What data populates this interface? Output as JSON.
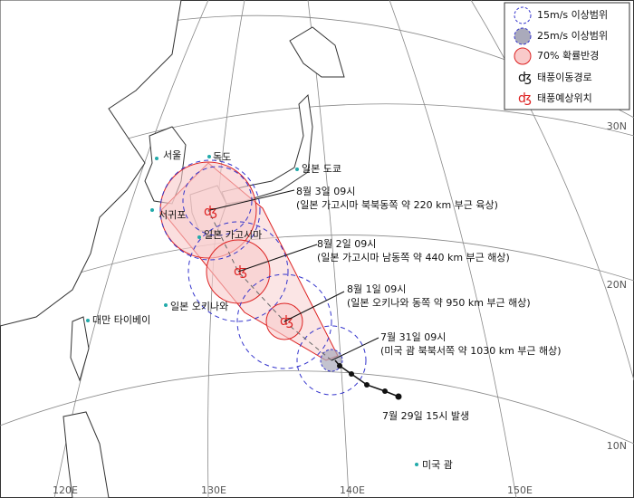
{
  "legend": {
    "items": [
      "15m/s 이상범위",
      "25m/s 이상범위",
      "70% 확률반경",
      "태풍이동경로",
      "태풍예상위치"
    ]
  },
  "grid": {
    "lat_labels": [
      "30N",
      "20N",
      "10N"
    ],
    "lon_labels": [
      "120E",
      "130E",
      "140E",
      "150E"
    ]
  },
  "places": [
    "서울",
    "독도",
    "일본 도쿄",
    "서귀포",
    "일본 가고시마",
    "일본 오키나와",
    "대만 타이베이",
    "미국 괌"
  ],
  "forecasts": [
    {
      "time": "8월 3일 09시",
      "description": "(일본 가고시마 북북동쪽 약 220 km 부근 육상)"
    },
    {
      "time": "8월 2일 09시",
      "description": "(일본 가고시마 남동쪽 약 440 km 부근 해상)"
    },
    {
      "time": "8월 1일 09시",
      "description": "(일본 오키나와 동쪽 약 950 km 부근 해상)"
    },
    {
      "time": "7월 31일 09시",
      "description": "(미국 괌 북북서쪽 약 1030 km 부근 해상)"
    }
  ],
  "genesis": "7월 29일 15시 발생"
}
